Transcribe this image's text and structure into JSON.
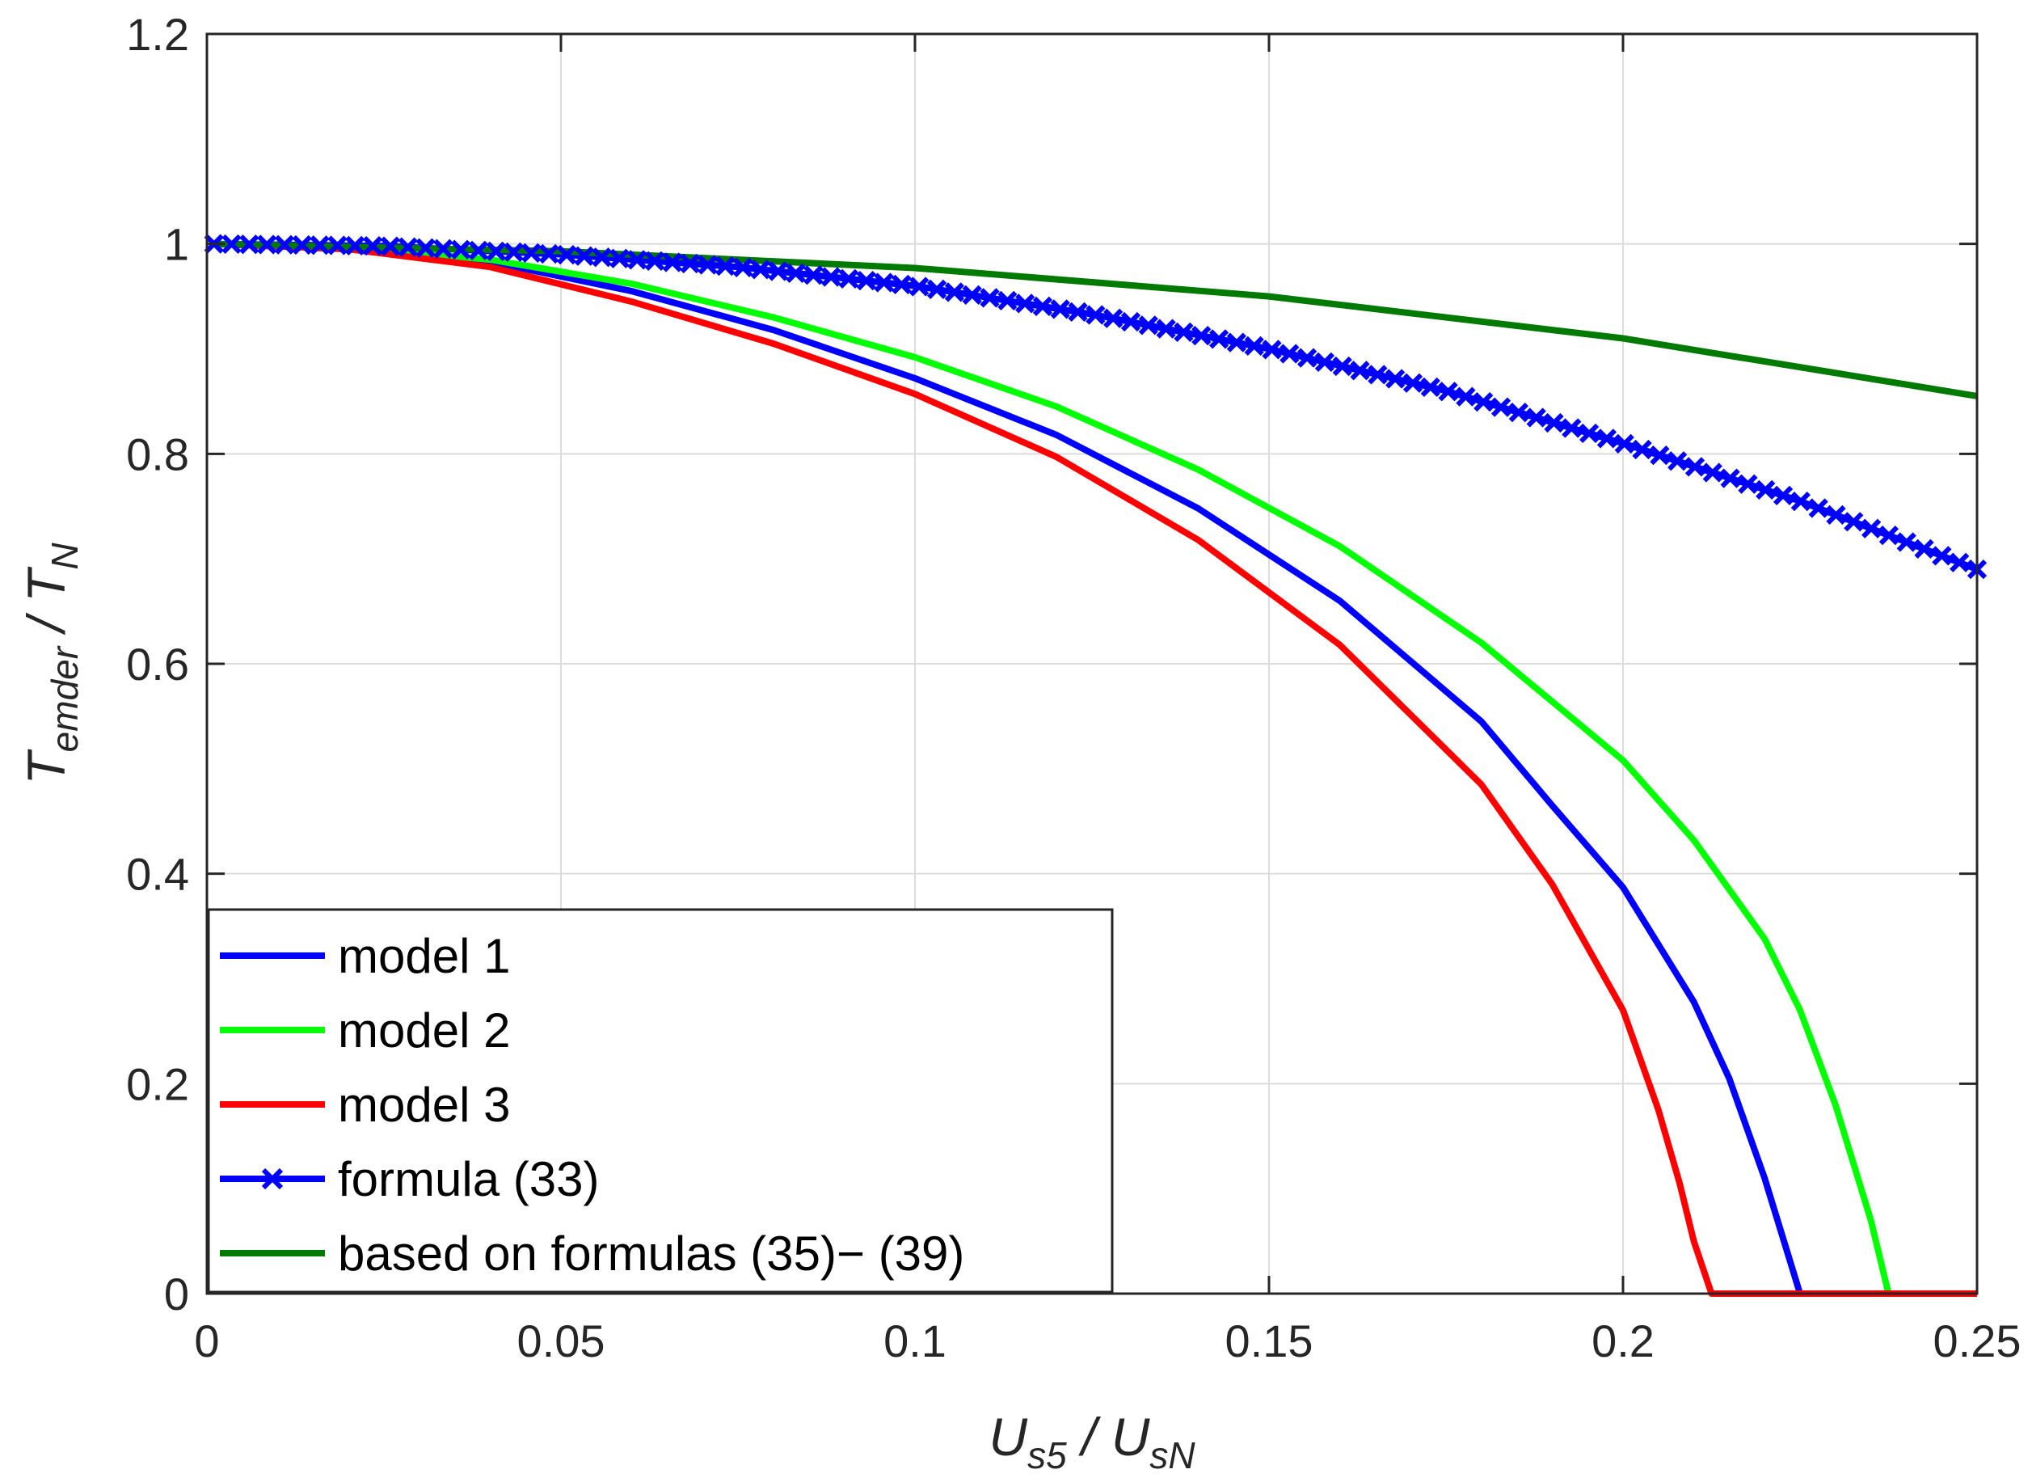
{
  "chart_data": {
    "type": "line",
    "title": "",
    "xlabel": {
      "main": "U",
      "sub": "s5",
      "sep": " / ",
      "main2": "U",
      "sub2": "sN"
    },
    "ylabel": {
      "main": "T",
      "sub": "emder",
      "sep": " / ",
      "main2": "T",
      "sub2": "N"
    },
    "xlim": [
      0,
      0.25
    ],
    "ylim": [
      0,
      1.2
    ],
    "xticks": [
      0,
      0.05,
      0.1,
      0.15,
      0.2,
      0.25
    ],
    "xtick_labels": [
      "0",
      "0.05",
      "0.1",
      "0.15",
      "0.2",
      "0.25"
    ],
    "yticks": [
      0,
      0.2,
      0.4,
      0.6,
      0.8,
      1,
      1.2
    ],
    "ytick_labels": [
      "0",
      "0.2",
      "0.4",
      "0.6",
      "0.8",
      "1",
      "1.2"
    ],
    "grid": true,
    "legend_position": "bottom-left",
    "series": [
      {
        "name": "model 1",
        "color": "#0000ff",
        "marker": "none",
        "x": [
          0.001,
          0.02,
          0.04,
          0.06,
          0.08,
          0.1,
          0.12,
          0.14,
          0.16,
          0.18,
          0.19,
          0.2,
          0.21,
          0.215,
          0.22,
          0.225,
          0.25
        ],
        "y": [
          1.0,
          0.997,
          0.983,
          0.955,
          0.918,
          0.872,
          0.818,
          0.748,
          0.66,
          0.545,
          0.465,
          0.387,
          0.278,
          0.205,
          0.11,
          0.0,
          0.0
        ]
      },
      {
        "name": "model 2",
        "color": "#00ff00",
        "marker": "none",
        "x": [
          0.001,
          0.02,
          0.04,
          0.06,
          0.08,
          0.1,
          0.12,
          0.14,
          0.16,
          0.18,
          0.2,
          0.21,
          0.22,
          0.225,
          0.23,
          0.235,
          0.2375,
          0.25
        ],
        "y": [
          1.0,
          0.997,
          0.985,
          0.962,
          0.93,
          0.892,
          0.845,
          0.785,
          0.712,
          0.62,
          0.508,
          0.432,
          0.338,
          0.27,
          0.18,
          0.07,
          0.0,
          0.0
        ]
      },
      {
        "name": "model 3",
        "color": "#ff0000",
        "marker": "none",
        "x": [
          0.001,
          0.02,
          0.04,
          0.06,
          0.08,
          0.1,
          0.12,
          0.14,
          0.16,
          0.18,
          0.19,
          0.2,
          0.205,
          0.208,
          0.21,
          0.2125,
          0.25
        ],
        "y": [
          1.0,
          0.995,
          0.978,
          0.945,
          0.905,
          0.857,
          0.797,
          0.718,
          0.618,
          0.485,
          0.39,
          0.27,
          0.175,
          0.105,
          0.05,
          0.0,
          0.0
        ]
      },
      {
        "name": "formula (33)",
        "color": "#0000ff",
        "marker": "x",
        "x": [
          0.001,
          0.025,
          0.05,
          0.075,
          0.1,
          0.125,
          0.15,
          0.175,
          0.2,
          0.225,
          0.25
        ],
        "y": [
          1.0,
          0.998,
          0.99,
          0.978,
          0.96,
          0.933,
          0.9,
          0.86,
          0.81,
          0.755,
          0.69
        ]
      },
      {
        "name": "based on formulas (35)− (39)",
        "color": "#007a00",
        "marker": "none",
        "x": [
          0.001,
          0.05,
          0.1,
          0.15,
          0.2,
          0.25
        ],
        "y": [
          1.0,
          0.993,
          0.977,
          0.95,
          0.91,
          0.855
        ]
      }
    ]
  }
}
